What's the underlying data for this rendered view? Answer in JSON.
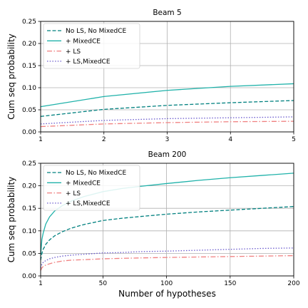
{
  "chart_data": [
    {
      "type": "line",
      "title": "Beam 5",
      "xlabel": "",
      "ylabel": "Cum seq probability",
      "xlim": [
        1,
        5
      ],
      "ylim": [
        0,
        0.25
      ],
      "xticks": [
        1,
        2,
        3,
        4,
        5
      ],
      "xtick_labels": [
        "1",
        "2",
        "3",
        "4",
        "5"
      ],
      "yticks": [
        0,
        0.05,
        0.1,
        0.15,
        0.2,
        0.25
      ],
      "ytick_labels": [
        "0.00",
        "0.05",
        "0.10",
        "0.15",
        "0.20",
        "0.25"
      ],
      "grid": true,
      "legend_position": "top-left",
      "x": [
        1,
        2,
        3,
        4,
        5
      ],
      "series": [
        {
          "name": "No LS, No MixedCE",
          "color": "#00807f",
          "dash": "dashed",
          "values": [
            0.035,
            0.051,
            0.06,
            0.066,
            0.071
          ]
        },
        {
          "name": "+ MixedCE",
          "color": "#20b2aa",
          "dash": "solid",
          "values": [
            0.057,
            0.08,
            0.094,
            0.103,
            0.109
          ]
        },
        {
          "name": "+ LS",
          "color": "#f08080",
          "dash": "dashdot",
          "values": [
            0.012,
            0.018,
            0.021,
            0.023,
            0.024
          ]
        },
        {
          "name": "+ LS,MixedCE",
          "color": "#6a5acd",
          "dash": "dotted",
          "values": [
            0.018,
            0.026,
            0.03,
            0.032,
            0.034
          ]
        }
      ]
    },
    {
      "type": "line",
      "title": "Beam 200",
      "xlabel": "Number of hypotheses",
      "ylabel": "Cum seq probability",
      "xlim": [
        1,
        200
      ],
      "ylim": [
        0,
        0.25
      ],
      "xticks": [
        1,
        50,
        100,
        150,
        200
      ],
      "xtick_labels": [
        "1",
        "50",
        "100",
        "150",
        "200"
      ],
      "yticks": [
        0,
        0.05,
        0.1,
        0.15,
        0.2,
        0.25
      ],
      "ytick_labels": [
        "0.00",
        "0.05",
        "0.10",
        "0.15",
        "0.20",
        "0.25"
      ],
      "grid": true,
      "legend_position": "top-left",
      "x": [
        1,
        2,
        3,
        5,
        8,
        12,
        18,
        25,
        35,
        50,
        65,
        80,
        100,
        125,
        150,
        175,
        200
      ],
      "series": [
        {
          "name": "No LS, No MixedCE",
          "color": "#00807f",
          "dash": "dashed",
          "values": [
            0.035,
            0.05,
            0.059,
            0.07,
            0.08,
            0.089,
            0.098,
            0.106,
            0.114,
            0.123,
            0.128,
            0.132,
            0.137,
            0.142,
            0.146,
            0.15,
            0.154
          ]
        },
        {
          "name": "+ MixedCE",
          "color": "#20b2aa",
          "dash": "solid",
          "values": [
            0.045,
            0.081,
            0.095,
            0.115,
            0.131,
            0.144,
            0.156,
            0.166,
            0.176,
            0.187,
            0.194,
            0.199,
            0.205,
            0.212,
            0.218,
            0.223,
            0.228
          ]
        },
        {
          "name": "+ LS",
          "color": "#f08080",
          "dash": "dashdot",
          "values": [
            0.012,
            0.018,
            0.021,
            0.024,
            0.027,
            0.03,
            0.033,
            0.035,
            0.036,
            0.038,
            0.039,
            0.04,
            0.041,
            0.042,
            0.043,
            0.044,
            0.045
          ]
        },
        {
          "name": "+ LS,MixedCE",
          "color": "#6a5acd",
          "dash": "dotted",
          "values": [
            0.018,
            0.026,
            0.03,
            0.034,
            0.038,
            0.041,
            0.044,
            0.046,
            0.048,
            0.051,
            0.052,
            0.054,
            0.055,
            0.057,
            0.059,
            0.061,
            0.062
          ]
        }
      ]
    }
  ]
}
